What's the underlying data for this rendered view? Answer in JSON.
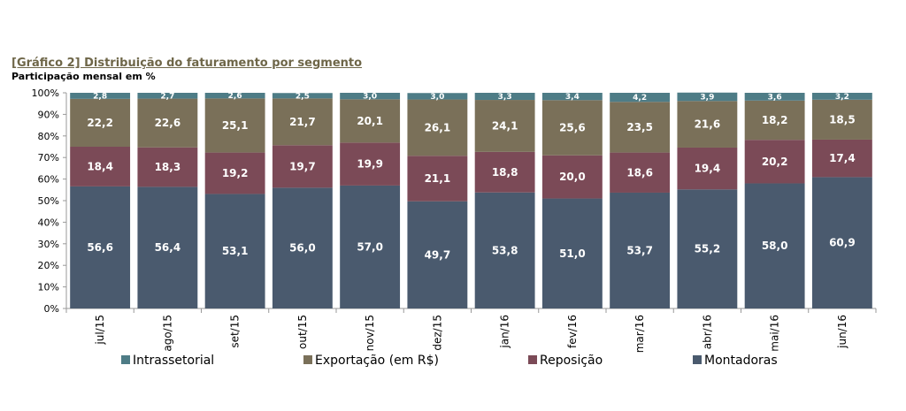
{
  "chart_data": {
    "type": "bar",
    "stacked": true,
    "title": "[Gráfico 2] Distribuição do faturamento por segmento",
    "subtitle": "Participação mensal em %",
    "xlabel": "",
    "ylabel": "",
    "ylim": [
      0,
      100
    ],
    "yticks": [
      "0%",
      "10%",
      "20%",
      "30%",
      "40%",
      "50%",
      "60%",
      "70%",
      "80%",
      "90%",
      "100%"
    ],
    "categories": [
      "jul/15",
      "ago/15",
      "set/15",
      "out/15",
      "nov/15",
      "dez/15",
      "jan/16",
      "fev/16",
      "mar/16",
      "abr/16",
      "mai/16",
      "jun/16"
    ],
    "series": [
      {
        "name": "Montadoras",
        "color": "#4a5a6e",
        "values": [
          56.6,
          56.4,
          53.1,
          56.0,
          57.0,
          49.7,
          53.8,
          51.0,
          53.7,
          55.2,
          58.0,
          60.9
        ]
      },
      {
        "name": "Reposição",
        "color": "#7b4a57",
        "values": [
          18.4,
          18.3,
          19.2,
          19.7,
          19.9,
          21.1,
          18.8,
          20.0,
          18.6,
          19.4,
          20.2,
          17.4
        ]
      },
      {
        "name": "Exportação (em R$)",
        "color": "#7a7059",
        "values": [
          22.2,
          22.6,
          25.1,
          21.7,
          20.1,
          26.1,
          24.1,
          25.6,
          23.5,
          21.6,
          18.2,
          18.5
        ]
      },
      {
        "name": "Intrassetorial",
        "color": "#4e7c86",
        "values": [
          2.8,
          2.7,
          2.6,
          2.5,
          3.0,
          3.0,
          3.3,
          3.4,
          4.2,
          3.9,
          3.6,
          3.2
        ]
      }
    ],
    "legend_order": [
      "Intrassetorial",
      "Exportação (em R$)",
      "Reposição",
      "Montadoras"
    ],
    "legend_position": "bottom",
    "grid": false
  }
}
